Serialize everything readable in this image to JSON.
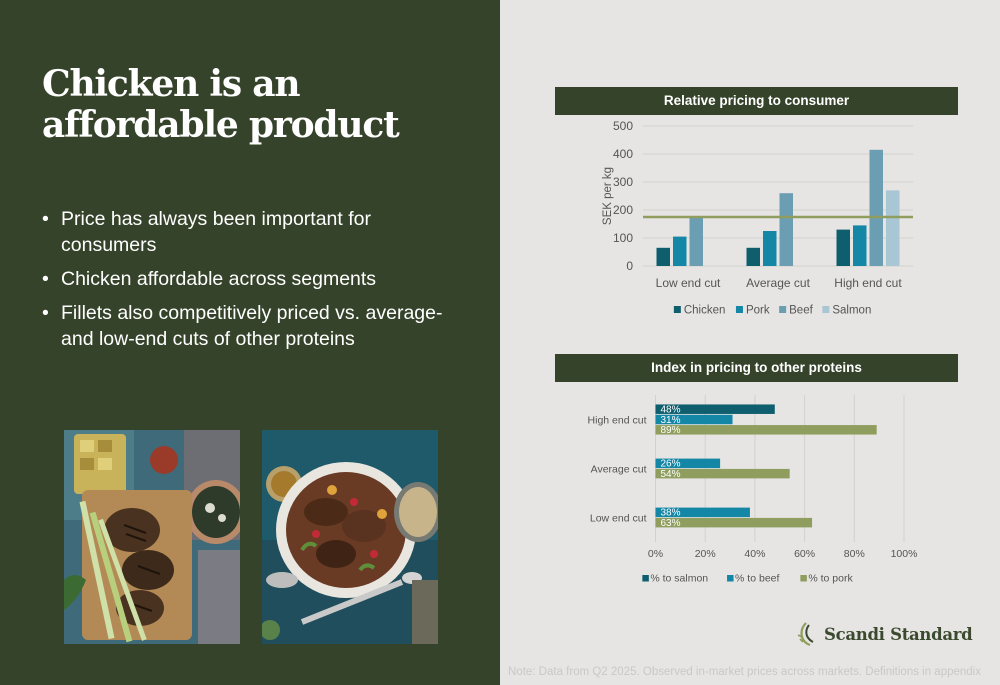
{
  "slide": {
    "title": "Chicken is an affordable product",
    "bullets": [
      "Price has always been important for consumers",
      "Chicken affordable across segments",
      "Fillets also competitively priced vs. average- and low-end cuts of other proteins"
    ],
    "bullet_char": "•",
    "footnote": "Note: Data from Q2 2025. Observed in-market prices across markets. Definitions in appendix",
    "logo_text": "Scandi Standard",
    "colors": {
      "dark_green": "#36432b",
      "panel_grey": "#e6e5e3",
      "olive": "#8f9e5f"
    }
  },
  "chart_data": [
    {
      "type": "bar",
      "title": "Relative pricing to consumer",
      "ylabel": "SEK per kg",
      "xlabel": "",
      "ylim": [
        0,
        500
      ],
      "yticks": [
        0,
        100,
        200,
        300,
        400,
        500
      ],
      "categories": [
        "Low end cut",
        "Average cut",
        "High end cut"
      ],
      "series": [
        {
          "name": "Chicken",
          "color": "#0f5e6e",
          "values": [
            65,
            65,
            130
          ]
        },
        {
          "name": "Pork",
          "color": "#1486a6",
          "values": [
            105,
            125,
            145
          ]
        },
        {
          "name": "Beef",
          "color": "#6b9db3",
          "values": [
            175,
            260,
            415
          ]
        },
        {
          "name": "Salmon",
          "color": "#a9c6d4",
          "values": [
            null,
            null,
            270
          ]
        }
      ],
      "reference_line": {
        "value": 175,
        "color": "#8f9e5f"
      },
      "grid": true,
      "legend": "bottom"
    },
    {
      "type": "bar",
      "orientation": "horizontal",
      "title": "Index in pricing to other proteins",
      "xlim": [
        0,
        100
      ],
      "xticks": [
        "0%",
        "20%",
        "40%",
        "60%",
        "80%",
        "100%"
      ],
      "categories": [
        "High end cut",
        "Average cut",
        "Low end cut"
      ],
      "series": [
        {
          "name": "% to salmon",
          "color": "#0f5e6e",
          "values": [
            48,
            null,
            null
          ],
          "labels": [
            "48%",
            null,
            null
          ]
        },
        {
          "name": "% to beef",
          "color": "#1486a6",
          "values": [
            31,
            26,
            38
          ],
          "labels": [
            "31%",
            "26%",
            "38%"
          ]
        },
        {
          "name": "% to pork",
          "color": "#8f9e5f",
          "values": [
            89,
            54,
            63
          ],
          "labels": [
            "89%",
            "54%",
            "63%"
          ]
        }
      ],
      "grid": true,
      "legend": "bottom"
    }
  ]
}
